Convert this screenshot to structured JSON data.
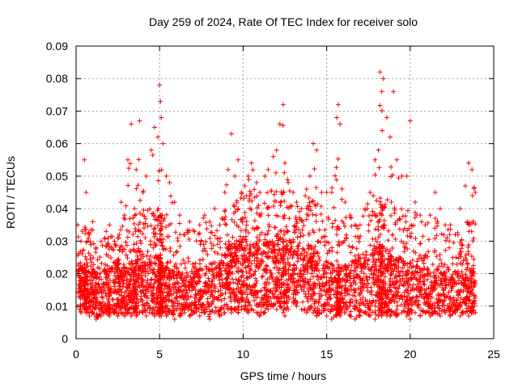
{
  "chart_data": {
    "type": "scatter",
    "title": "Day 259 of 2024, Rate Of TEC Index for receiver solo",
    "xlabel": "GPS time / hours",
    "ylabel": "ROTI / TECUs",
    "xlim": [
      0,
      25
    ],
    "ylim": [
      0,
      0.09
    ],
    "xticks": [
      "0",
      "5",
      "10",
      "15",
      "20",
      "25"
    ],
    "yticks": [
      "0",
      "0.01",
      "0.02",
      "0.03",
      "0.04",
      "0.05",
      "0.06",
      "0.07",
      "0.08",
      "0.09"
    ],
    "grid": true,
    "marker": "+",
    "color": "#ff0000",
    "series": [
      {
        "x": [
          0.1,
          0.3,
          0.5,
          0.6,
          0.8,
          1.0,
          1.2,
          1.5,
          1.8,
          2.0,
          2.3,
          2.5,
          2.7,
          2.9,
          3.1,
          3.3,
          3.5,
          3.6,
          3.8,
          4.0,
          4.2,
          4.5,
          4.7,
          4.9,
          5.0,
          5.05,
          5.1,
          5.2,
          5.4,
          5.6,
          5.9,
          6.2,
          6.5,
          6.8,
          7.1,
          7.4,
          7.7,
          8.0,
          8.3,
          8.6,
          8.9,
          9.1,
          9.3,
          9.5,
          9.7,
          9.9,
          10.1,
          10.3,
          10.5,
          10.8,
          11.0,
          11.3,
          11.5,
          11.8,
          12.0,
          12.2,
          12.4,
          12.5,
          12.7,
          13.0,
          13.2,
          13.5,
          13.8,
          14.0,
          14.2,
          14.4,
          14.7,
          15.0,
          15.3,
          15.6,
          15.7,
          15.8,
          16.1,
          16.4,
          16.7,
          17.0,
          17.3,
          17.6,
          17.9,
          18.1,
          18.2,
          18.3,
          18.4,
          18.6,
          18.8,
          19.0,
          19.2,
          19.5,
          19.8,
          20.0,
          20.3,
          20.6,
          20.9,
          21.2,
          21.5,
          21.8,
          22.1,
          22.4,
          22.7,
          23.0,
          23.3,
          23.5,
          23.7,
          23.9
        ],
        "y": [
          0.035,
          0.03,
          0.055,
          0.045,
          0.032,
          0.036,
          0.028,
          0.03,
          0.033,
          0.035,
          0.03,
          0.031,
          0.042,
          0.038,
          0.055,
          0.066,
          0.04,
          0.052,
          0.067,
          0.045,
          0.05,
          0.058,
          0.065,
          0.062,
          0.078,
          0.073,
          0.068,
          0.06,
          0.05,
          0.048,
          0.042,
          0.038,
          0.032,
          0.036,
          0.033,
          0.035,
          0.038,
          0.036,
          0.04,
          0.035,
          0.045,
          0.052,
          0.063,
          0.05,
          0.055,
          0.045,
          0.047,
          0.05,
          0.054,
          0.048,
          0.045,
          0.05,
          0.052,
          0.056,
          0.058,
          0.066,
          0.072,
          0.054,
          0.048,
          0.045,
          0.042,
          0.04,
          0.046,
          0.05,
          0.06,
          0.058,
          0.045,
          0.045,
          0.045,
          0.068,
          0.072,
          0.066,
          0.042,
          0.038,
          0.035,
          0.035,
          0.04,
          0.045,
          0.055,
          0.058,
          0.082,
          0.076,
          0.08,
          0.068,
          0.062,
          0.076,
          0.055,
          0.05,
          0.05,
          0.067,
          0.042,
          0.038,
          0.035,
          0.038,
          0.045,
          0.04,
          0.035,
          0.035,
          0.032,
          0.04,
          0.047,
          0.054,
          0.052,
          0.045
        ],
        "floor": [
          0.01,
          0.008,
          0.009,
          0.008,
          0.007,
          0.008,
          0.006,
          0.007,
          0.008,
          0.007,
          0.008,
          0.007,
          0.008,
          0.007,
          0.008,
          0.007,
          0.008,
          0.007,
          0.008,
          0.008,
          0.007,
          0.008,
          0.007,
          0.008,
          0.007,
          0.008,
          0.007,
          0.008,
          0.007,
          0.008,
          0.006,
          0.007,
          0.008,
          0.007,
          0.008,
          0.007,
          0.008,
          0.006,
          0.008,
          0.007,
          0.008,
          0.009,
          0.008,
          0.009,
          0.008,
          0.009,
          0.009,
          0.008,
          0.009,
          0.008,
          0.007,
          0.008,
          0.009,
          0.01,
          0.009,
          0.01,
          0.008,
          0.007,
          0.009,
          0.011,
          0.01,
          0.009,
          0.008,
          0.009,
          0.008,
          0.007,
          0.008,
          0.007,
          0.006,
          0.007,
          0.008,
          0.007,
          0.008,
          0.007,
          0.006,
          0.007,
          0.008,
          0.007,
          0.006,
          0.007,
          0.008,
          0.007,
          0.008,
          0.007,
          0.007,
          0.008,
          0.007,
          0.008,
          0.007,
          0.006,
          0.008,
          0.007,
          0.008,
          0.007,
          0.008,
          0.007,
          0.008,
          0.007,
          0.008,
          0.007,
          0.008,
          0.007,
          0.008,
          0.008
        ],
        "core": [
          0.025,
          0.022,
          0.023,
          0.022,
          0.021,
          0.022,
          0.02,
          0.021,
          0.022,
          0.022,
          0.023,
          0.022,
          0.023,
          0.022,
          0.024,
          0.024,
          0.023,
          0.024,
          0.025,
          0.024,
          0.023,
          0.024,
          0.024,
          0.025,
          0.025,
          0.025,
          0.024,
          0.023,
          0.022,
          0.022,
          0.021,
          0.021,
          0.02,
          0.021,
          0.021,
          0.022,
          0.023,
          0.023,
          0.024,
          0.024,
          0.026,
          0.028,
          0.029,
          0.03,
          0.03,
          0.031,
          0.031,
          0.03,
          0.031,
          0.03,
          0.029,
          0.03,
          0.03,
          0.031,
          0.032,
          0.033,
          0.032,
          0.031,
          0.031,
          0.03,
          0.03,
          0.029,
          0.029,
          0.029,
          0.028,
          0.027,
          0.026,
          0.024,
          0.023,
          0.022,
          0.022,
          0.022,
          0.023,
          0.024,
          0.025,
          0.025,
          0.026,
          0.027,
          0.028,
          0.029,
          0.03,
          0.029,
          0.028,
          0.027,
          0.026,
          0.026,
          0.025,
          0.025,
          0.024,
          0.023,
          0.023,
          0.022,
          0.022,
          0.022,
          0.023,
          0.023,
          0.022,
          0.021,
          0.021,
          0.021,
          0.022,
          0.022,
          0.021,
          0.021
        ]
      }
    ]
  }
}
